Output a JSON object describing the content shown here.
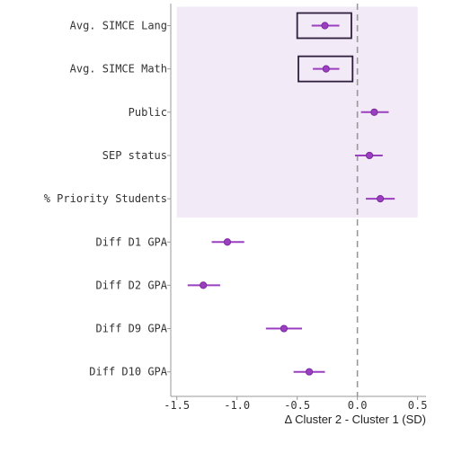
{
  "chart_data": {
    "type": "scatter",
    "subtype": "coefficient-plot",
    "xlabel": "Δ Cluster 2 - Cluster 1 (SD)",
    "ylabel": "",
    "title": "",
    "xlim": [
      -1.55,
      0.57
    ],
    "xticks": [
      -1.5,
      -1.0,
      -0.5,
      0.0,
      0.5
    ],
    "xtick_labels": [
      "-1.5",
      "-1.0",
      "-0.5",
      "0.0",
      "0.5"
    ],
    "reference_line_x": 0.0,
    "highlight_region": {
      "x_range": [
        -1.5,
        0.5
      ],
      "rows": [
        "Avg. SIMCE Lang",
        "Public",
        "SEP status",
        "% Priority Students"
      ],
      "color": "#f2eaf7"
    },
    "boxed_rows": [
      "Avg. SIMCE Lang",
      "Avg. SIMCE Math"
    ],
    "box_x_range": [
      -0.49,
      -0.04
    ],
    "categories": [
      "Avg. SIMCE Lang",
      "Avg. SIMCE Math",
      "Public",
      "SEP status",
      "% Priority Students",
      "Diff D1 GPA",
      "Diff D2 GPA",
      "Diff D9 GPA",
      "Diff D10 GPA"
    ],
    "estimates": [
      -0.27,
      -0.26,
      0.14,
      0.1,
      0.19,
      -1.08,
      -1.28,
      -0.61,
      -0.4
    ],
    "ci_low": [
      -0.38,
      -0.37,
      0.03,
      -0.02,
      0.07,
      -1.21,
      -1.41,
      -0.76,
      -0.53
    ],
    "ci_high": [
      -0.15,
      -0.15,
      0.26,
      0.21,
      0.31,
      -0.94,
      -1.14,
      -0.46,
      -0.27
    ],
    "colors": {
      "point": "#9b3fc1",
      "point_edge": "#7a2a9c",
      "ci_line": "#9b3fc1",
      "box": "#2e1f3d",
      "refline": "#999999",
      "axis": "#999999"
    }
  }
}
